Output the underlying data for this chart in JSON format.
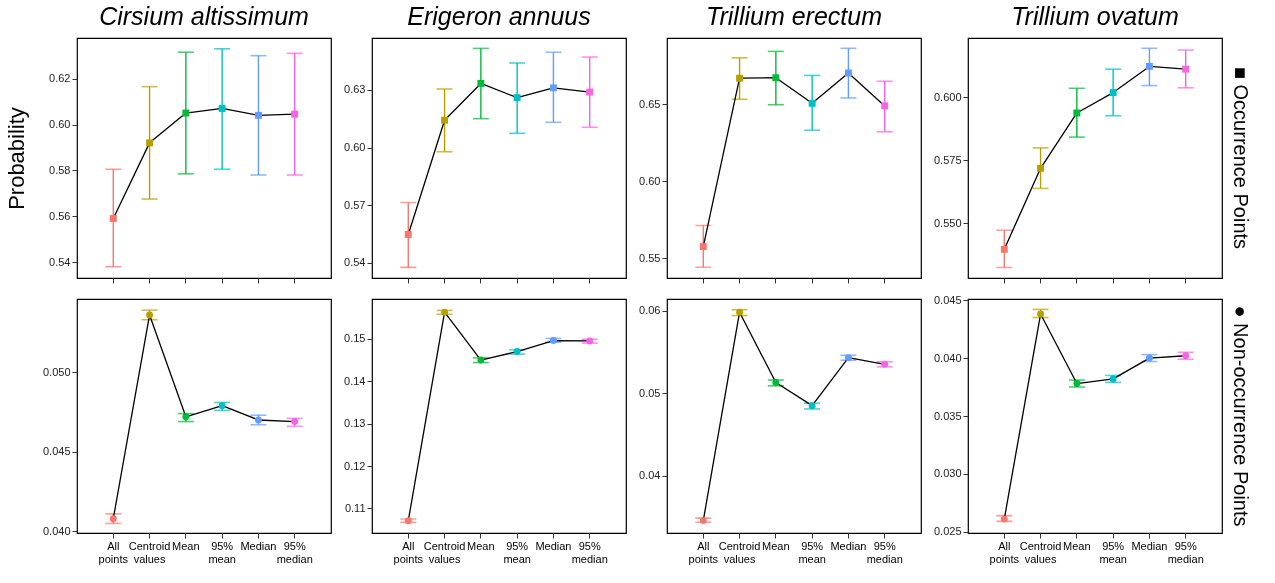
{
  "chart_data": [
    {
      "type": "line",
      "title": "Cirsium altissimum",
      "ylabel": "Probability",
      "categories": [
        null,
        null,
        null,
        null,
        null,
        null
      ],
      "values": [
        0.559,
        0.592,
        0.605,
        0.607,
        0.604,
        0.6045
      ],
      "errors": [
        [
          0.538,
          0.5805
        ],
        [
          0.5675,
          0.6165
        ],
        [
          0.5785,
          0.6315
        ],
        [
          0.5805,
          0.633
        ],
        [
          0.578,
          0.63
        ],
        [
          0.578,
          0.631
        ]
      ],
      "color": "#000000",
      "colors": [
        "#f8766d",
        "#b79f00",
        "#00ba38",
        "#00bfc4",
        "#619cff",
        "#f564e3"
      ],
      "marker": "square",
      "ylim": [
        0.5331,
        0.6377
      ],
      "yticks": [
        0.54,
        0.56,
        0.58,
        {
          "value": 0.6,
          "label": "0.60"
        },
        0.62
      ],
      "tick_labels": "y"
    },
    {
      "type": "line",
      "title": "Erigeron annuus",
      "categories": [
        null,
        null,
        null,
        null,
        null,
        null
      ],
      "values": [
        0.5548,
        0.6142,
        0.6333,
        0.6259,
        0.631,
        0.6288
      ],
      "errors": [
        [
          0.5377,
          0.5714
        ],
        [
          0.5978,
          0.6304
        ],
        [
          0.615,
          0.6515
        ],
        [
          0.6074,
          0.6439
        ],
        [
          0.6131,
          0.6495
        ],
        [
          0.6105,
          0.647
        ]
      ],
      "color": "#000000",
      "colors": [
        "#f8766d",
        "#b79f00",
        "#00ba38",
        "#00bfc4",
        "#619cff",
        "#f564e3"
      ],
      "marker": "square",
      "ylim": [
        0.5322,
        0.6569
      ],
      "yticks": [
        0.54,
        0.57,
        {
          "value": 0.6,
          "label": "0.60"
        },
        0.63
      ],
      "tick_labels": "y"
    },
    {
      "type": "line",
      "title": "Trillium erectum",
      "categories": [
        null,
        null,
        null,
        null,
        null,
        null
      ],
      "values": [
        0.5575,
        0.6668,
        0.6671,
        0.6505,
        0.6702,
        0.6488
      ],
      "errors": [
        [
          0.5441,
          0.5712
        ],
        [
          0.6531,
          0.68
        ],
        [
          0.6496,
          0.6842
        ],
        [
          0.633,
          0.6686
        ],
        [
          0.654,
          0.6862
        ],
        [
          0.632,
          0.6648
        ]
      ],
      "color": "#000000",
      "colors": [
        "#f8766d",
        "#b79f00",
        "#00ba38",
        "#00bfc4",
        "#619cff",
        "#f564e3"
      ],
      "marker": "square",
      "ylim": [
        0.5371,
        0.6929
      ],
      "yticks": [
        0.55,
        {
          "value": 0.6,
          "label": "0.60"
        },
        0.65
      ],
      "tick_labels": "y"
    },
    {
      "type": "line",
      "title": "Trillium ovatum",
      "categories": [
        null,
        null,
        null,
        null,
        null,
        null
      ],
      "values": [
        0.5396,
        0.5718,
        0.5938,
        0.6019,
        0.6123,
        0.6112
      ],
      "errors": [
        [
          0.5324,
          0.5472
        ],
        [
          0.5638,
          0.5799
        ],
        [
          0.5842,
          0.6036
        ],
        [
          0.5927,
          0.6112
        ],
        [
          0.6047,
          0.6195
        ],
        [
          0.6038,
          0.6188
        ]
      ],
      "color": "#000000",
      "colors": [
        "#f8766d",
        "#b79f00",
        "#00ba38",
        "#00bfc4",
        "#619cff",
        "#f564e3"
      ],
      "marker": "square",
      "ylim": [
        0.5282,
        0.6236
      ],
      "yticks": [
        {
          "value": 0.55,
          "label": "0.550"
        },
        0.575,
        {
          "value": 0.6,
          "label": "0.600"
        }
      ],
      "tick_labels": "y",
      "annotations": [
        "■ Occurrence Points"
      ]
    },
    {
      "type": "line",
      "categories": [
        "All points",
        "Centroid values",
        "Mean",
        "95% mean",
        "Median",
        "95% median"
      ],
      "values": [
        0.0408,
        0.0536,
        0.0472,
        0.0479,
        0.047,
        0.0469
      ],
      "errors": [
        [
          0.0405,
          0.0411
        ],
        [
          0.0533,
          0.0539
        ],
        [
          0.0469,
          0.0474
        ],
        [
          0.0476,
          0.0481
        ],
        [
          0.0467,
          0.0473
        ],
        [
          0.0466,
          0.0471
        ]
      ],
      "color": "#000000",
      "colors": [
        "#f8766d",
        "#b79f00",
        "#00ba38",
        "#00bfc4",
        "#619cff",
        "#f564e3"
      ],
      "marker": "circle",
      "ylim": [
        0.0399,
        0.0546
      ],
      "yticks": [
        {
          "value": 0.04,
          "label": "0.040"
        },
        0.045,
        {
          "value": 0.05,
          "label": "0.050"
        }
      ]
    },
    {
      "type": "line",
      "categories": [
        "All points",
        "Centroid values",
        "Mean",
        "95% mean",
        "Median",
        "95% median"
      ],
      "values": [
        0.1071,
        0.1563,
        0.145,
        0.147,
        0.1496,
        0.1495
      ],
      "errors": [
        [
          0.1067,
          0.1075
        ],
        [
          0.1558,
          0.1567
        ],
        [
          0.1444,
          0.1455
        ],
        [
          0.1464,
          0.1474
        ],
        [
          0.1492,
          0.1501
        ],
        [
          0.149,
          0.1499
        ]
      ],
      "color": "#000000",
      "colors": [
        "#f8766d",
        "#b79f00",
        "#00ba38",
        "#00bfc4",
        "#619cff",
        "#f564e3"
      ],
      "marker": "circle",
      "ylim": [
        0.1042,
        0.1594
      ],
      "yticks": [
        0.11,
        0.12,
        0.13,
        0.14,
        0.15
      ]
    },
    {
      "type": "line",
      "categories": [
        "All points",
        "Centroid values",
        "Mean",
        "95% mean",
        "Median",
        "95% median"
      ],
      "values": [
        0.0346,
        0.0598,
        0.0513,
        0.0485,
        0.0543,
        0.0535
      ],
      "errors": [
        [
          0.0344,
          0.0349
        ],
        [
          0.0594,
          0.0601
        ],
        [
          0.0509,
          0.0516
        ],
        [
          0.0481,
          0.0488
        ],
        [
          0.054,
          0.0546
        ],
        [
          0.0532,
          0.0538
        ]
      ],
      "color": "#000000",
      "colors": [
        "#f8766d",
        "#b79f00",
        "#00ba38",
        "#00bfc4",
        "#619cff",
        "#f564e3"
      ],
      "marker": "circle",
      "ylim": [
        0.0331,
        0.0614
      ],
      "yticks": [
        0.04,
        0.05,
        0.06
      ]
    },
    {
      "type": "line",
      "categories": [
        "All points",
        "Centroid values",
        "Mean",
        "95% mean",
        "Median",
        "95% median"
      ],
      "values": [
        0.0261,
        0.0438,
        0.0378,
        0.0382,
        0.04,
        0.0402
      ],
      "errors": [
        [
          0.0259,
          0.0264
        ],
        [
          0.0435,
          0.0442
        ],
        [
          0.0375,
          0.0381
        ],
        [
          0.0379,
          0.0385
        ],
        [
          0.0397,
          0.0403
        ],
        [
          0.0399,
          0.0405
        ]
      ],
      "color": "#000000",
      "colors": [
        "#f8766d",
        "#b79f00",
        "#00ba38",
        "#00bfc4",
        "#619cff",
        "#f564e3"
      ],
      "marker": "circle",
      "ylim": [
        0.0249,
        0.0451
      ],
      "yticks": [
        0.025,
        {
          "value": 0.03,
          "label": "0.030"
        },
        0.035,
        {
          "value": 0.04,
          "label": "0.040"
        },
        0.045
      ],
      "annotations": [
        "● Non-occurrence Points"
      ]
    }
  ]
}
